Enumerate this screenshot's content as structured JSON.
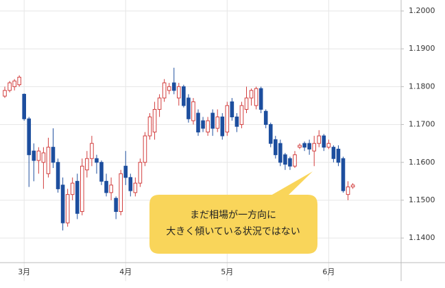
{
  "chart_data": {
    "type": "candlestick",
    "categories": [
      null,
      null,
      null,
      null,
      "3月",
      null,
      null,
      null,
      null,
      null,
      null,
      null,
      null,
      null,
      null,
      null,
      null,
      null,
      null,
      null,
      null,
      null,
      null,
      null,
      null,
      "4月",
      null,
      null,
      null,
      null,
      null,
      null,
      null,
      null,
      null,
      null,
      null,
      null,
      null,
      null,
      null,
      null,
      null,
      null,
      null,
      null,
      "5月",
      null,
      null,
      null,
      null,
      null,
      null,
      null,
      null,
      null,
      null,
      null,
      null,
      null,
      null,
      null,
      null,
      null,
      null,
      null,
      null,
      "6月",
      null,
      null,
      null,
      null,
      null
    ],
    "open": [
      1.1775,
      1.179,
      1.18,
      1.1805,
      1.178,
      1.1715,
      1.163,
      1.1605,
      1.16,
      1.157,
      1.164,
      1.16,
      1.154,
      1.144,
      1.1515,
      1.155,
      1.147,
      1.158,
      1.161,
      1.161,
      1.16,
      1.155,
      1.152,
      1.1505,
      1.147,
      1.159,
      1.156,
      1.152,
      1.1545,
      1.16,
      1.167,
      1.168,
      1.174,
      1.177,
      1.179,
      1.181,
      1.177,
      1.18,
      1.177,
      1.171,
      1.173,
      1.171,
      1.168,
      1.173,
      1.169,
      1.172,
      1.168,
      1.176,
      1.172,
      1.17,
      1.174,
      1.177,
      1.175,
      1.1795,
      1.1735,
      1.17,
      1.166,
      1.165,
      1.162,
      1.161,
      1.159,
      1.164,
      1.165,
      1.165,
      1.163,
      1.165,
      1.167,
      1.164,
      1.164,
      1.1635,
      1.161,
      1.1515,
      1.1535
    ],
    "high": [
      1.18,
      1.1815,
      1.182,
      1.183,
      1.1782,
      1.172,
      1.165,
      1.164,
      1.164,
      1.1665,
      1.169,
      1.161,
      1.156,
      1.153,
      1.156,
      1.157,
      1.161,
      1.163,
      1.167,
      1.162,
      1.1605,
      1.157,
      1.156,
      1.151,
      1.158,
      1.163,
      1.157,
      1.156,
      1.161,
      1.168,
      1.173,
      1.176,
      1.178,
      1.182,
      1.181,
      1.185,
      1.181,
      1.1805,
      1.178,
      1.177,
      1.174,
      1.172,
      1.172,
      1.174,
      1.174,
      1.173,
      1.176,
      1.177,
      1.173,
      1.176,
      1.18,
      1.1795,
      1.18,
      1.18,
      1.174,
      1.1705,
      1.167,
      1.166,
      1.1625,
      1.1615,
      1.163,
      1.165,
      1.1655,
      1.166,
      1.167,
      1.1685,
      1.1675,
      1.166,
      1.1645,
      1.1645,
      1.1615,
      1.155,
      1.1545
    ],
    "low": [
      1.177,
      1.1785,
      1.179,
      1.18,
      1.171,
      1.1535,
      1.155,
      1.157,
      1.153,
      1.156,
      1.1585,
      1.152,
      1.142,
      1.143,
      1.15,
      1.145,
      1.146,
      1.156,
      1.159,
      1.157,
      1.154,
      1.151,
      1.15,
      1.145,
      1.146,
      1.154,
      1.151,
      1.151,
      1.1535,
      1.159,
      1.166,
      1.166,
      1.172,
      1.176,
      1.178,
      1.178,
      1.175,
      1.1745,
      1.1705,
      1.17,
      1.167,
      1.168,
      1.167,
      1.167,
      1.168,
      1.166,
      1.167,
      1.171,
      1.168,
      1.169,
      1.173,
      1.175,
      1.174,
      1.173,
      1.169,
      1.164,
      1.161,
      1.159,
      1.158,
      1.158,
      1.1585,
      1.1635,
      1.163,
      1.162,
      1.159,
      1.164,
      1.163,
      1.1635,
      1.16,
      1.159,
      1.152,
      1.15,
      1.153
    ],
    "close": [
      1.179,
      1.181,
      1.1815,
      1.1825,
      1.1715,
      1.162,
      1.1605,
      1.163,
      1.1625,
      1.164,
      1.16,
      1.153,
      1.144,
      1.1515,
      1.1545,
      1.1465,
      1.159,
      1.161,
      1.165,
      1.16,
      1.155,
      1.152,
      1.154,
      1.147,
      1.157,
      1.156,
      1.1525,
      1.1545,
      1.16,
      1.167,
      1.172,
      1.174,
      1.177,
      1.181,
      1.18,
      1.179,
      1.18,
      1.175,
      1.1715,
      1.176,
      1.168,
      1.169,
      1.171,
      1.169,
      1.172,
      1.167,
      1.175,
      1.172,
      1.1695,
      1.175,
      1.177,
      1.179,
      1.1795,
      1.174,
      1.17,
      1.165,
      1.162,
      1.16,
      1.1595,
      1.159,
      1.162,
      1.1645,
      1.164,
      1.1635,
      1.165,
      1.167,
      1.164,
      1.165,
      1.161,
      1.16,
      1.1525,
      1.1535,
      1.154
    ],
    "up_color": "#d23c3c",
    "down_color": "#1d4e9e",
    "ylim": [
      1.1335,
      1.2
    ],
    "yticks": [
      {
        "value": 1.2,
        "label": "1.2000"
      },
      {
        "value": 1.19,
        "label": "1.1900"
      },
      {
        "value": 1.18,
        "label": "1.1800"
      },
      {
        "value": 1.17,
        "label": "1.1700"
      },
      {
        "value": 1.16,
        "label": "1.1600"
      },
      {
        "value": 1.15,
        "label": "1.1500"
      },
      {
        "value": 1.14,
        "label": "1.1400"
      }
    ],
    "grid": true,
    "annotation": [
      "まだ相場が一方向に",
      "大きく傾いている状況ではない"
    ]
  }
}
